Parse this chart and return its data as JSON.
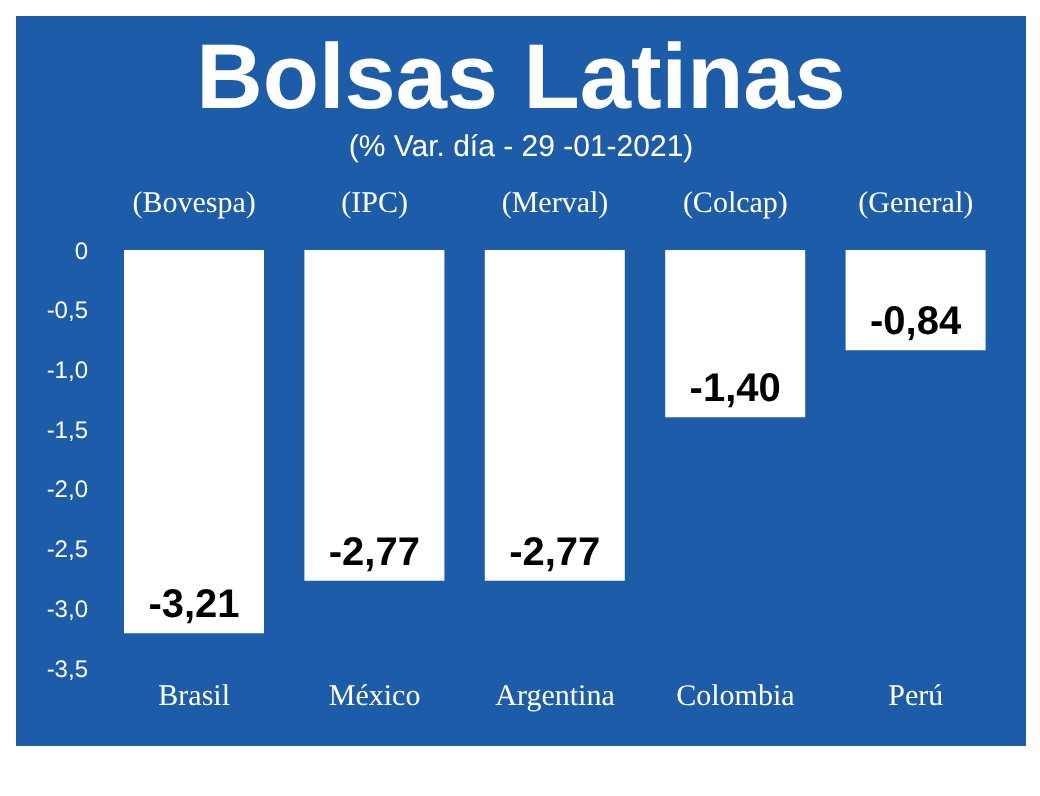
{
  "chart_data": {
    "type": "bar",
    "title": "Bolsas Latinas",
    "subtitle": "(% Var. día - 29 -01-2021)",
    "categories": [
      "Brasil",
      "México",
      "Argentina",
      "Colombia",
      "Perú"
    ],
    "values": [
      -3.21,
      -2.77,
      -2.77,
      -1.4,
      -0.84
    ],
    "value_labels": [
      "-3,21",
      "-2,77",
      "-2,77",
      "-1,40",
      "-0,84"
    ],
    "color": "#ffffff",
    "ylim": [
      -3.5,
      0
    ],
    "yticks": [
      {
        "value": 0,
        "label": "0"
      },
      {
        "value": -0.5,
        "label": "-0,5"
      },
      {
        "value": -1,
        "label": "-1,0"
      },
      {
        "value": -1.5,
        "label": "-1,5"
      },
      {
        "value": -2,
        "label": "-2,0"
      },
      {
        "value": -2.5,
        "label": "-2,5"
      },
      {
        "value": -3,
        "label": "-3,0"
      },
      {
        "value": -3.5,
        "label": "-3,5"
      }
    ],
    "annotations": [
      "(Bovespa)",
      "(IPC)",
      "(Merval)",
      "(Colcap)",
      "(General)"
    ],
    "grid": false,
    "legend": false
  }
}
